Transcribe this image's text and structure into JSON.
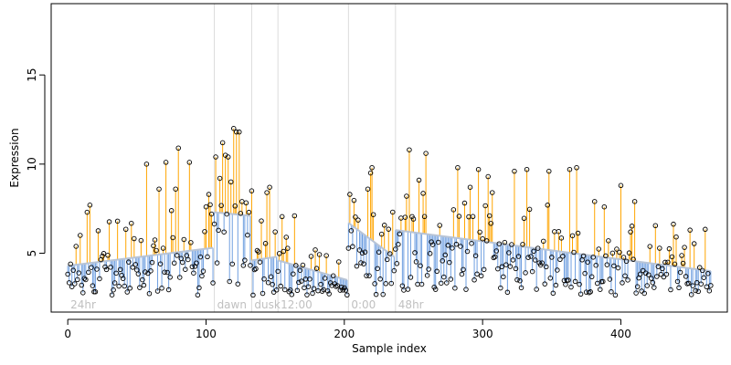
{
  "chart_data": {
    "type": "scatter",
    "xlabel": "Sample index",
    "ylabel": "Expression",
    "xlim": [
      -12,
      477
    ],
    "ylim": [
      1.7,
      19.0
    ],
    "x_ticks": [
      "0",
      "100",
      "200",
      "300",
      "400"
    ],
    "y_ticks": [
      "5",
      "10",
      "15"
    ],
    "grid": false,
    "legend": "none",
    "colors": {
      "above_trend": "#ffa500",
      "below_trend": "#6f9fe0",
      "trend": "#b8c4d6",
      "period_line": "#dcdcdc",
      "period_label": "#c0c0c0",
      "point_edge": "#000000"
    },
    "periods": [
      {
        "label": "24hr",
        "x": 0
      },
      {
        "label": "dawn",
        "x": 106
      },
      {
        "label": "dusk",
        "x": 133
      },
      {
        "label": "12:00",
        "x": 152
      },
      {
        "label": "0:00",
        "x": 203
      },
      {
        "label": "48hr",
        "x": 237
      }
    ],
    "trend_segments": [
      {
        "x0": 0,
        "x1": 105,
        "y0": 4.3,
        "y1": 5.3
      },
      {
        "x0": 106,
        "x1": 132,
        "y0": 7.3,
        "y1": 7.1
      },
      {
        "x0": 133,
        "x1": 151,
        "y0": 4.6,
        "y1": 4.8
      },
      {
        "x0": 152,
        "x1": 202,
        "y0": 4.6,
        "y1": 3.5
      },
      {
        "x0": 203,
        "x1": 236,
        "y0": 6.7,
        "y1": 4.8
      },
      {
        "x0": 237,
        "x1": 465,
        "y0": 6.3,
        "y1": 4.0
      }
    ],
    "highlight_points": [
      {
        "x": 9,
        "y": 6.0
      },
      {
        "x": 14,
        "y": 7.3
      },
      {
        "x": 16,
        "y": 7.7
      },
      {
        "x": 36,
        "y": 6.8
      },
      {
        "x": 57,
        "y": 10.0
      },
      {
        "x": 66,
        "y": 8.6
      },
      {
        "x": 71,
        "y": 10.1
      },
      {
        "x": 78,
        "y": 8.6
      },
      {
        "x": 80,
        "y": 10.9
      },
      {
        "x": 88,
        "y": 10.1
      },
      {
        "x": 100,
        "y": 7.6
      },
      {
        "x": 102,
        "y": 8.3
      },
      {
        "x": 107,
        "y": 10.4
      },
      {
        "x": 110,
        "y": 9.2
      },
      {
        "x": 112,
        "y": 11.2
      },
      {
        "x": 114,
        "y": 10.5
      },
      {
        "x": 116,
        "y": 10.4
      },
      {
        "x": 118,
        "y": 9.0
      },
      {
        "x": 120,
        "y": 12.0
      },
      {
        "x": 122,
        "y": 11.8
      },
      {
        "x": 124,
        "y": 11.8
      },
      {
        "x": 133,
        "y": 8.5
      },
      {
        "x": 144,
        "y": 8.4
      },
      {
        "x": 146,
        "y": 8.7
      },
      {
        "x": 164,
        "y": 7.1
      },
      {
        "x": 204,
        "y": 8.3
      },
      {
        "x": 217,
        "y": 8.6
      },
      {
        "x": 219,
        "y": 9.5
      },
      {
        "x": 220,
        "y": 9.8
      },
      {
        "x": 245,
        "y": 8.2
      },
      {
        "x": 247,
        "y": 10.8
      },
      {
        "x": 254,
        "y": 9.1
      },
      {
        "x": 259,
        "y": 10.6
      },
      {
        "x": 282,
        "y": 9.8
      },
      {
        "x": 291,
        "y": 8.7
      },
      {
        "x": 297,
        "y": 9.7
      },
      {
        "x": 304,
        "y": 9.3
      },
      {
        "x": 307,
        "y": 8.4
      },
      {
        "x": 323,
        "y": 9.6
      },
      {
        "x": 332,
        "y": 9.7
      },
      {
        "x": 348,
        "y": 9.6
      },
      {
        "x": 363,
        "y": 9.7
      },
      {
        "x": 368,
        "y": 9.8
      },
      {
        "x": 381,
        "y": 7.9
      },
      {
        "x": 388,
        "y": 7.6
      },
      {
        "x": 400,
        "y": 8.8
      },
      {
        "x": 410,
        "y": 7.9
      }
    ]
  }
}
